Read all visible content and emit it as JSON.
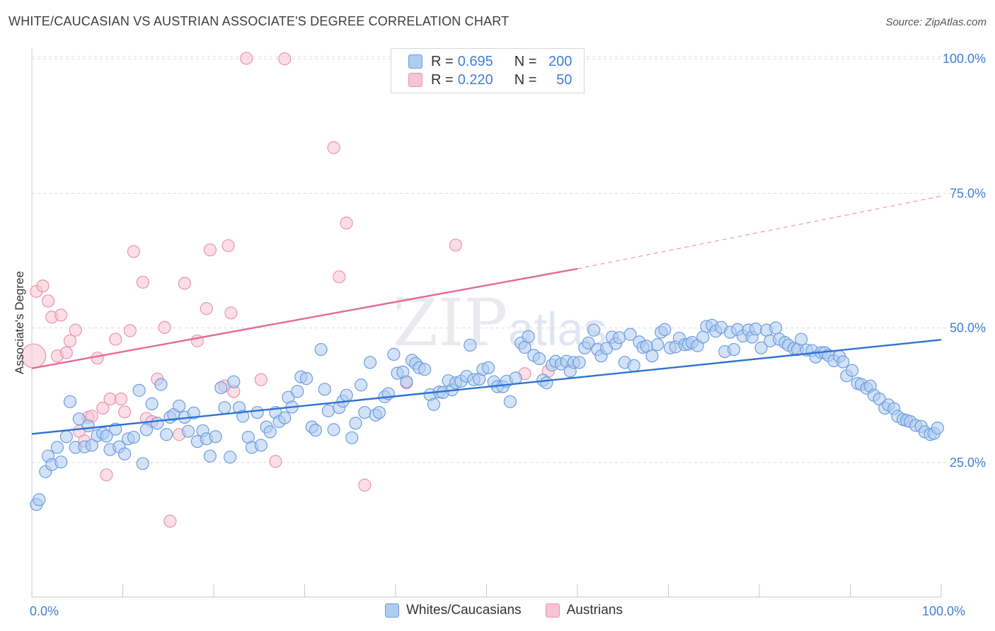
{
  "title": "WHITE/CAUCASIAN VS AUSTRIAN ASSOCIATE'S DEGREE CORRELATION CHART",
  "source": "Source: ZipAtlas.com",
  "legend": {
    "rows": [
      {
        "r_label": "R =",
        "r_value": "0.695",
        "n_label": "N =",
        "n_value": "200"
      },
      {
        "r_label": "R =",
        "r_value": "0.220",
        "n_label": "N =",
        "n_value": "50"
      }
    ]
  },
  "bottom_legend": {
    "whites": "Whites/Caucasians",
    "austrians": "Austrians"
  },
  "colors": {
    "blue_fill": "#aecbf0",
    "blue_stroke": "#6a9ee0",
    "blue_line": "#2e72d2",
    "pink_fill": "#f8c3d2",
    "pink_stroke": "#ec93ad",
    "pink_line": "#e56a92",
    "axis_label": "#3f7fd8",
    "grid": "#dcdcdc"
  },
  "chart_data": {
    "type": "scatter",
    "title": "WHITE/CAUCASIAN VS AUSTRIAN ASSOCIATE'S DEGREE CORRELATION CHART",
    "xlabel": "",
    "ylabel": "Associate's Degree",
    "xlim": [
      0,
      100
    ],
    "ylim": [
      0,
      102
    ],
    "x_ticks": [
      {
        "value": 0,
        "label": "0.0%"
      },
      {
        "value": 100,
        "label": "100.0%"
      }
    ],
    "y_ticks": [
      {
        "value": 25,
        "label": "25.0%"
      },
      {
        "value": 50,
        "label": "50.0%"
      },
      {
        "value": 75,
        "label": "75.0%"
      },
      {
        "value": 100,
        "label": "100.0%"
      }
    ],
    "grid": true,
    "watermark": "ZIPatlas",
    "series": [
      {
        "name": "Whites/Caucasians",
        "color": "#6a9ee0",
        "r": 0.695,
        "n": 200,
        "trendline": {
          "x": [
            0,
            100
          ],
          "y": [
            30.3,
            47.8
          ]
        },
        "points": [
          [
            0.5,
            17.2
          ],
          [
            0.8,
            18.1
          ],
          [
            1.5,
            23.3
          ],
          [
            1.8,
            26.2
          ],
          [
            2.2,
            24.6
          ],
          [
            2.8,
            27.8
          ],
          [
            3.2,
            25.1
          ],
          [
            3.8,
            29.8
          ],
          [
            4.2,
            36.3
          ],
          [
            4.8,
            27.8
          ],
          [
            5.2,
            33.1
          ],
          [
            5.8,
            27.9
          ],
          [
            6.2,
            31.8
          ],
          [
            6.6,
            28.2
          ],
          [
            7.2,
            30.0
          ],
          [
            7.8,
            30.4
          ],
          [
            8.2,
            29.9
          ],
          [
            8.6,
            27.4
          ],
          [
            9.2,
            31.2
          ],
          [
            9.6,
            27.9
          ],
          [
            10.2,
            26.6
          ],
          [
            10.6,
            29.4
          ],
          [
            11.2,
            29.7
          ],
          [
            11.8,
            38.4
          ],
          [
            12.2,
            24.8
          ],
          [
            12.6,
            31.1
          ],
          [
            13.2,
            35.9
          ],
          [
            13.8,
            32.3
          ],
          [
            14.2,
            39.5
          ],
          [
            14.8,
            30.2
          ],
          [
            15.2,
            33.4
          ],
          [
            15.6,
            33.9
          ],
          [
            16.2,
            35.5
          ],
          [
            16.8,
            33.4
          ],
          [
            17.2,
            30.8
          ],
          [
            17.8,
            34.2
          ],
          [
            18.2,
            28.9
          ],
          [
            18.8,
            30.9
          ],
          [
            19.2,
            29.4
          ],
          [
            19.6,
            26.2
          ],
          [
            20.2,
            29.8
          ],
          [
            20.8,
            38.9
          ],
          [
            21.2,
            35.2
          ],
          [
            21.8,
            26.0
          ],
          [
            22.2,
            40.0
          ],
          [
            22.8,
            35.2
          ],
          [
            23.2,
            33.6
          ],
          [
            23.8,
            29.7
          ],
          [
            24.2,
            27.8
          ],
          [
            24.8,
            34.3
          ],
          [
            25.2,
            28.2
          ],
          [
            25.8,
            31.6
          ],
          [
            26.2,
            30.7
          ],
          [
            26.8,
            34.3
          ],
          [
            27.2,
            32.6
          ],
          [
            27.8,
            33.3
          ],
          [
            28.2,
            37.1
          ],
          [
            28.6,
            35.3
          ],
          [
            29.2,
            38.2
          ],
          [
            29.6,
            40.9
          ],
          [
            30.2,
            40.6
          ],
          [
            30.8,
            31.6
          ],
          [
            31.2,
            31.0
          ],
          [
            31.8,
            46.0
          ],
          [
            32.2,
            38.6
          ],
          [
            32.6,
            34.6
          ],
          [
            33.2,
            31.1
          ],
          [
            33.8,
            35.2
          ],
          [
            34.2,
            36.4
          ],
          [
            34.6,
            37.5
          ],
          [
            35.2,
            29.6
          ],
          [
            35.6,
            32.3
          ],
          [
            36.2,
            39.4
          ],
          [
            36.6,
            34.3
          ],
          [
            37.2,
            43.6
          ],
          [
            37.8,
            33.8
          ],
          [
            38.2,
            34.3
          ],
          [
            38.8,
            37.2
          ],
          [
            39.2,
            37.8
          ],
          [
            39.8,
            45.1
          ],
          [
            40.2,
            41.6
          ],
          [
            40.8,
            41.8
          ],
          [
            41.2,
            40.0
          ],
          [
            41.8,
            44.0
          ],
          [
            42.2,
            43.4
          ],
          [
            42.6,
            42.6
          ],
          [
            43.2,
            42.3
          ],
          [
            43.8,
            37.6
          ],
          [
            44.2,
            35.8
          ],
          [
            44.8,
            38.1
          ],
          [
            45.2,
            38.0
          ],
          [
            45.8,
            40.2
          ],
          [
            46.2,
            38.5
          ],
          [
            46.6,
            39.8
          ],
          [
            47.2,
            40.1
          ],
          [
            47.8,
            41.0
          ],
          [
            48.2,
            46.8
          ],
          [
            48.6,
            40.4
          ],
          [
            49.2,
            40.5
          ],
          [
            49.6,
            42.3
          ],
          [
            50.2,
            42.6
          ],
          [
            50.8,
            40.0
          ],
          [
            51.2,
            39.1
          ],
          [
            51.8,
            39.1
          ],
          [
            52.2,
            40.1
          ],
          [
            52.6,
            36.3
          ],
          [
            53.2,
            40.7
          ],
          [
            53.8,
            47.2
          ],
          [
            54.2,
            46.4
          ],
          [
            54.6,
            48.4
          ],
          [
            55.2,
            44.9
          ],
          [
            55.8,
            44.3
          ],
          [
            56.2,
            40.3
          ],
          [
            56.6,
            39.8
          ],
          [
            57.2,
            43.1
          ],
          [
            57.6,
            43.8
          ],
          [
            58.2,
            43.3
          ],
          [
            58.8,
            43.8
          ],
          [
            59.2,
            42.0
          ],
          [
            59.6,
            43.6
          ],
          [
            60.2,
            43.6
          ],
          [
            60.8,
            46.3
          ],
          [
            61.2,
            47.2
          ],
          [
            61.8,
            49.6
          ],
          [
            62.2,
            46.0
          ],
          [
            62.6,
            44.8
          ],
          [
            63.2,
            46.2
          ],
          [
            63.8,
            48.3
          ],
          [
            64.2,
            47.1
          ],
          [
            64.6,
            48.2
          ],
          [
            65.2,
            43.6
          ],
          [
            65.8,
            48.8
          ],
          [
            66.2,
            43.0
          ],
          [
            66.8,
            47.4
          ],
          [
            67.2,
            46.4
          ],
          [
            67.6,
            46.6
          ],
          [
            68.2,
            44.8
          ],
          [
            68.8,
            46.9
          ],
          [
            69.2,
            49.2
          ],
          [
            69.6,
            49.7
          ],
          [
            70.2,
            46.3
          ],
          [
            70.8,
            46.5
          ],
          [
            71.2,
            48.1
          ],
          [
            71.8,
            46.9
          ],
          [
            72.2,
            47.0
          ],
          [
            72.6,
            47.3
          ],
          [
            73.2,
            46.7
          ],
          [
            73.8,
            48.3
          ],
          [
            74.2,
            50.3
          ],
          [
            74.8,
            50.5
          ],
          [
            75.2,
            49.4
          ],
          [
            75.8,
            50.1
          ],
          [
            76.2,
            45.6
          ],
          [
            76.8,
            49.2
          ],
          [
            77.2,
            46.0
          ],
          [
            77.6,
            49.7
          ],
          [
            78.2,
            48.5
          ],
          [
            78.8,
            49.6
          ],
          [
            79.2,
            48.3
          ],
          [
            79.6,
            49.8
          ],
          [
            80.2,
            46.3
          ],
          [
            80.8,
            49.6
          ],
          [
            81.2,
            47.6
          ],
          [
            81.8,
            50.0
          ],
          [
            82.2,
            47.9
          ],
          [
            82.8,
            47.3
          ],
          [
            83.2,
            46.8
          ],
          [
            83.8,
            46.2
          ],
          [
            84.2,
            46.0
          ],
          [
            84.6,
            47.9
          ],
          [
            85.2,
            45.9
          ],
          [
            85.8,
            45.8
          ],
          [
            86.2,
            44.6
          ],
          [
            86.8,
            45.4
          ],
          [
            87.2,
            45.4
          ],
          [
            87.6,
            44.9
          ],
          [
            88.2,
            43.9
          ],
          [
            88.8,
            44.7
          ],
          [
            89.2,
            43.7
          ],
          [
            89.6,
            41.1
          ],
          [
            90.2,
            42.1
          ],
          [
            90.8,
            39.7
          ],
          [
            91.2,
            39.5
          ],
          [
            91.8,
            38.8
          ],
          [
            92.2,
            39.2
          ],
          [
            92.6,
            37.5
          ],
          [
            93.2,
            36.8
          ],
          [
            93.8,
            35.1
          ],
          [
            94.2,
            35.7
          ],
          [
            94.8,
            35.0
          ],
          [
            95.2,
            33.6
          ],
          [
            95.8,
            33.0
          ],
          [
            96.2,
            32.8
          ],
          [
            96.6,
            32.6
          ],
          [
            97.2,
            31.9
          ],
          [
            97.8,
            31.7
          ],
          [
            98.2,
            30.7
          ],
          [
            98.8,
            30.2
          ],
          [
            99.2,
            30.4
          ],
          [
            99.6,
            31.4
          ]
        ]
      },
      {
        "name": "Austrians",
        "color": "#ec93ad",
        "r": 0.22,
        "n": 50,
        "trendline": {
          "x": [
            0,
            60
          ],
          "y": [
            42.5,
            61.0
          ],
          "dashed_extension": {
            "x": [
              60,
              100
            ],
            "y": [
              61.0,
              74.5
            ]
          }
        },
        "points": [
          [
            0.2,
            44.8
          ],
          [
            0.5,
            56.8
          ],
          [
            1.2,
            57.8
          ],
          [
            1.8,
            55.0
          ],
          [
            2.2,
            52.0
          ],
          [
            2.8,
            44.8
          ],
          [
            3.2,
            52.4
          ],
          [
            3.8,
            45.4
          ],
          [
            4.2,
            47.6
          ],
          [
            4.8,
            49.6
          ],
          [
            5.2,
            30.8
          ],
          [
            5.8,
            29.0
          ],
          [
            6.2,
            33.4
          ],
          [
            6.6,
            33.6
          ],
          [
            7.2,
            44.4
          ],
          [
            7.8,
            35.1
          ],
          [
            8.2,
            22.7
          ],
          [
            8.6,
            36.8
          ],
          [
            9.2,
            47.9
          ],
          [
            9.8,
            36.8
          ],
          [
            10.2,
            34.4
          ],
          [
            10.8,
            49.5
          ],
          [
            11.2,
            64.2
          ],
          [
            12.2,
            58.5
          ],
          [
            12.6,
            33.2
          ],
          [
            13.2,
            32.6
          ],
          [
            13.8,
            40.5
          ],
          [
            14.6,
            50.1
          ],
          [
            15.2,
            14.1
          ],
          [
            16.2,
            30.2
          ],
          [
            16.8,
            58.3
          ],
          [
            18.2,
            47.6
          ],
          [
            19.2,
            53.6
          ],
          [
            19.6,
            64.5
          ],
          [
            21.2,
            39.2
          ],
          [
            21.6,
            65.3
          ],
          [
            21.9,
            52.8
          ],
          [
            22.2,
            38.2
          ],
          [
            23.6,
            100.1
          ],
          [
            25.2,
            40.4
          ],
          [
            26.8,
            25.2
          ],
          [
            27.8,
            100.0
          ],
          [
            33.2,
            83.5
          ],
          [
            33.8,
            59.5
          ],
          [
            34.6,
            69.5
          ],
          [
            36.6,
            20.8
          ],
          [
            41.2,
            39.8
          ],
          [
            46.6,
            65.4
          ],
          [
            54.2,
            41.5
          ],
          [
            56.8,
            42.0
          ]
        ]
      }
    ]
  }
}
